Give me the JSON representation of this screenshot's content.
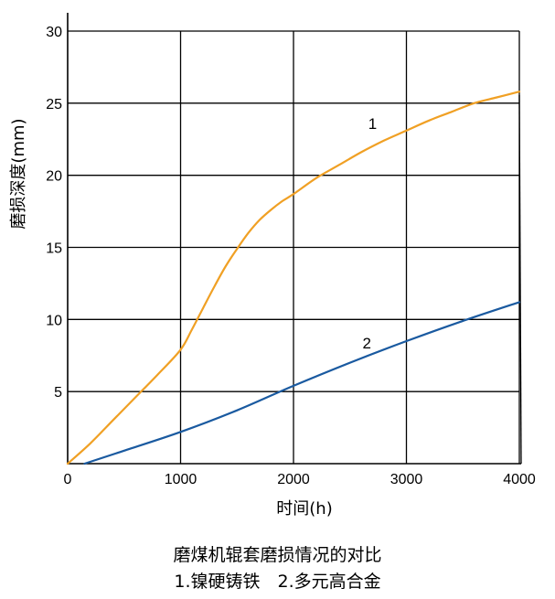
{
  "chart_data": {
    "type": "line",
    "title": "",
    "xlabel": "时间(h)",
    "ylabel": "磨损深度(mm)",
    "xlim": [
      0,
      4000
    ],
    "ylim": [
      0,
      30
    ],
    "xticks": [
      0,
      1000,
      2000,
      3000,
      4000
    ],
    "yticks": [
      5,
      10,
      15,
      20,
      25,
      30
    ],
    "grid": true,
    "series": [
      {
        "name": "1",
        "color": "#f0a024",
        "x": [
          0,
          200,
          400,
          600,
          800,
          1000,
          1100,
          1200,
          1300,
          1400,
          1500,
          1600,
          1700,
          1800,
          1900,
          2000,
          2200,
          2400,
          2600,
          2800,
          3000,
          3200,
          3400,
          3600,
          3800,
          4000
        ],
        "y": [
          0,
          1.4,
          3.0,
          4.6,
          6.2,
          7.9,
          9.3,
          10.8,
          12.3,
          13.7,
          14.9,
          16.0,
          16.9,
          17.6,
          18.2,
          18.7,
          19.8,
          20.7,
          21.6,
          22.4,
          23.1,
          23.8,
          24.4,
          25.0,
          25.4,
          25.8
        ]
      },
      {
        "name": "2",
        "color": "#1a5aa0",
        "x": [
          150,
          500,
          1000,
          1500,
          2000,
          2500,
          3000,
          3500,
          4000
        ],
        "y": [
          0,
          0.9,
          2.2,
          3.7,
          5.4,
          7.0,
          8.5,
          9.9,
          11.2
        ]
      }
    ]
  },
  "caption": {
    "title": "磨煤机辊套磨损情况的对比",
    "legend": "1.镍硬铸铁　2.多元高合金"
  }
}
